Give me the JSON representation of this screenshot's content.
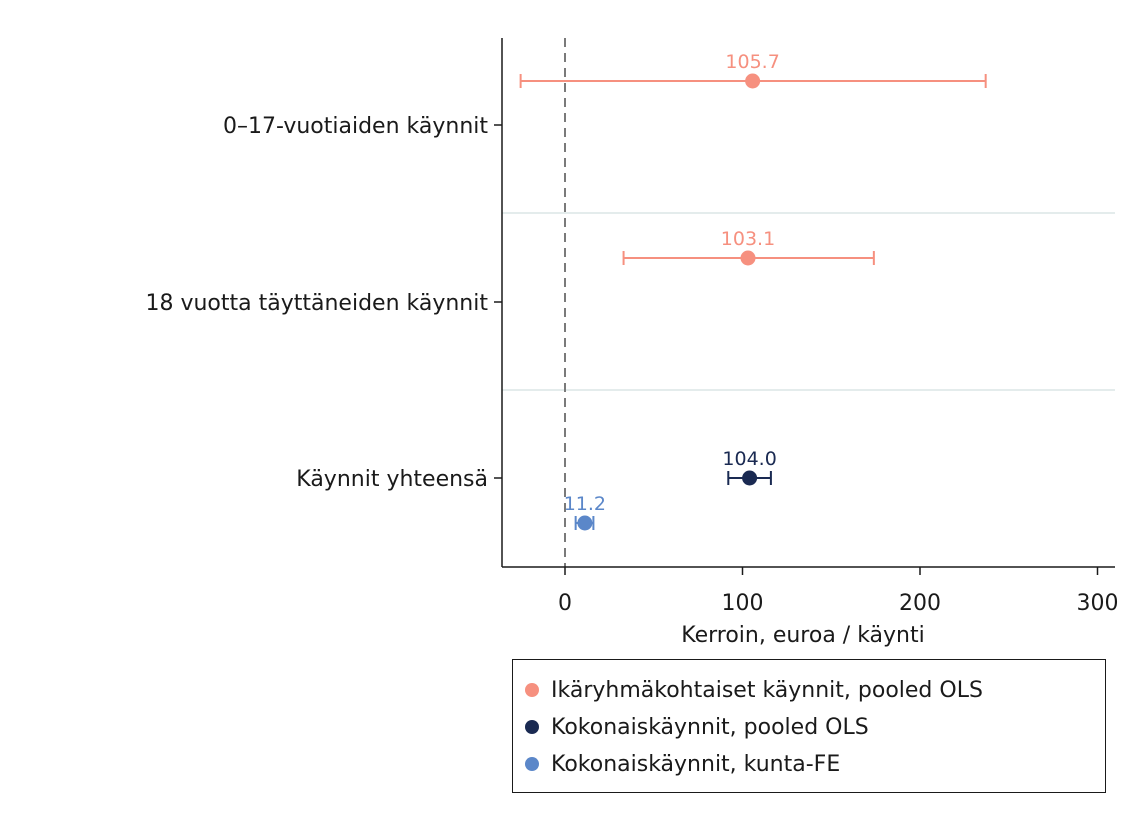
{
  "chart_data": {
    "type": "scatter",
    "subtype": "coefficient-plot-with-confidence-intervals",
    "xlabel": "Kerroin, euroa / käynti",
    "xlim": [
      -36,
      310
    ],
    "xticks": [
      0,
      100,
      200,
      300
    ],
    "xtick_labels": [
      "0",
      "100",
      "200",
      "300"
    ],
    "reference_line": 0,
    "categories": [
      "0–17-vuotiaiden käynnit",
      "18 vuotta täyttäneiden käynnit",
      "Käynnit yhteensä"
    ],
    "series": [
      {
        "name": "Ikäryhmäkohtaiset käynnit, pooled OLS",
        "color": "#f6907f",
        "points": [
          {
            "category": "0–17-vuotiaiden käynnit",
            "estimate": 105.7,
            "label": "105.7",
            "ci_low": -25,
            "ci_high": 237
          },
          {
            "category": "18 vuotta täyttäneiden käynnit",
            "estimate": 103.1,
            "label": "103.1",
            "ci_low": 33,
            "ci_high": 174
          }
        ]
      },
      {
        "name": "Kokonaiskäynnit, pooled OLS",
        "color": "#1a2a52",
        "points": [
          {
            "category": "Käynnit yhteensä",
            "estimate": 104.0,
            "label": "104.0",
            "ci_low": 92,
            "ci_high": 116
          }
        ]
      },
      {
        "name": "Kokonaiskäynnit, kunta-FE",
        "color": "#5b87c9",
        "points": [
          {
            "category": "Käynnit yhteensä",
            "estimate": 11.2,
            "label": "11.2",
            "ci_low": 6,
            "ci_high": 16
          }
        ]
      }
    ],
    "legend_position": "bottom"
  }
}
